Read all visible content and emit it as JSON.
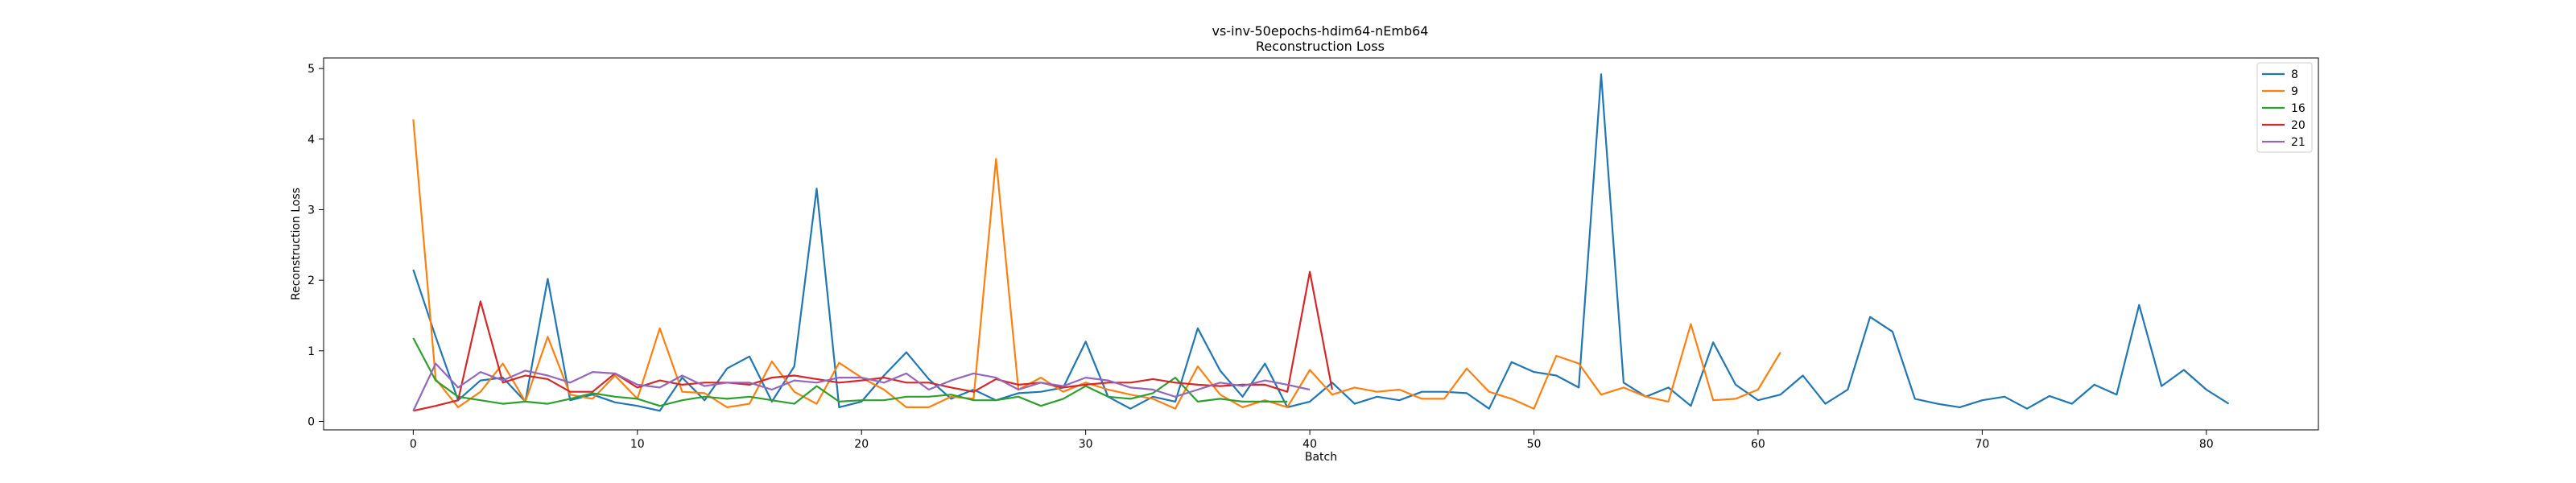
{
  "chart_data": {
    "type": "line",
    "title": "vs-inv-50epochs-hdim64-nEmb64",
    "subtitle": "Reconstruction Loss",
    "xlabel": "Batch",
    "ylabel": "Reconstruction Loss",
    "xlim": [
      -4,
      85
    ],
    "ylim": [
      -0.12,
      5.15
    ],
    "xticks": [
      0,
      10,
      20,
      30,
      40,
      50,
      60,
      70,
      80
    ],
    "yticks": [
      0,
      1,
      2,
      3,
      4,
      5
    ],
    "grid": false,
    "legend_position": "top-right",
    "series": [
      {
        "name": "8",
        "color": "#1f77b4",
        "values": [
          2.15,
          1.2,
          0.3,
          0.58,
          0.62,
          0.28,
          2.02,
          0.3,
          0.38,
          0.27,
          0.22,
          0.15,
          0.62,
          0.3,
          0.75,
          0.92,
          0.28,
          0.78,
          3.3,
          0.2,
          0.28,
          0.65,
          0.98,
          0.6,
          0.32,
          0.45,
          0.3,
          0.4,
          0.42,
          0.48,
          1.13,
          0.35,
          0.18,
          0.35,
          0.28,
          1.32,
          0.72,
          0.35,
          0.82,
          0.2,
          0.28,
          0.55,
          0.25,
          0.35,
          0.3,
          0.42,
          0.42,
          0.4,
          0.18,
          0.84,
          0.7,
          0.65,
          0.48,
          4.92,
          0.55,
          0.35,
          0.48,
          0.22,
          1.12,
          0.52,
          0.3,
          0.38,
          0.65,
          0.25,
          0.45,
          1.48,
          1.27,
          0.32,
          0.25,
          0.2,
          0.3,
          0.35,
          0.18,
          0.36,
          0.25,
          0.52,
          0.38,
          1.65,
          0.5,
          0.73,
          0.45,
          0.25
        ]
      },
      {
        "name": "9",
        "color": "#ff7f0e",
        "values": [
          4.28,
          0.6,
          0.2,
          0.42,
          0.82,
          0.28,
          1.2,
          0.38,
          0.32,
          0.65,
          0.32,
          1.32,
          0.42,
          0.4,
          0.2,
          0.25,
          0.85,
          0.42,
          0.25,
          0.83,
          0.62,
          0.45,
          0.2,
          0.2,
          0.35,
          0.32,
          3.72,
          0.45,
          0.62,
          0.42,
          0.55,
          0.45,
          0.38,
          0.32,
          0.18,
          0.78,
          0.38,
          0.2,
          0.3,
          0.2,
          0.73,
          0.38,
          0.48,
          0.42,
          0.45,
          0.32,
          0.32,
          0.75,
          0.42,
          0.32,
          0.18,
          0.93,
          0.82,
          0.38,
          0.48,
          0.35,
          0.28,
          1.38,
          0.3,
          0.32,
          0.45,
          0.98
        ]
      },
      {
        "name": "16",
        "color": "#2ca02c",
        "values": [
          1.18,
          0.58,
          0.35,
          0.3,
          0.25,
          0.28,
          0.25,
          0.32,
          0.4,
          0.35,
          0.32,
          0.22,
          0.3,
          0.35,
          0.32,
          0.35,
          0.3,
          0.25,
          0.5,
          0.28,
          0.3,
          0.3,
          0.35,
          0.35,
          0.38,
          0.3,
          0.3,
          0.35,
          0.22,
          0.32,
          0.5,
          0.35,
          0.32,
          0.4,
          0.62,
          0.28,
          0.32,
          0.28,
          0.28,
          0.28
        ]
      },
      {
        "name": "20",
        "color": "#d62728",
        "values": [
          0.15,
          0.22,
          0.3,
          1.7,
          0.55,
          0.65,
          0.6,
          0.42,
          0.42,
          0.68,
          0.48,
          0.58,
          0.52,
          0.55,
          0.55,
          0.52,
          0.62,
          0.65,
          0.6,
          0.55,
          0.58,
          0.62,
          0.55,
          0.55,
          0.48,
          0.42,
          0.6,
          0.52,
          0.55,
          0.48,
          0.52,
          0.55,
          0.55,
          0.6,
          0.55,
          0.52,
          0.5,
          0.52,
          0.52,
          0.42,
          2.12,
          0.45
        ]
      },
      {
        "name": "21",
        "color": "#9467bd",
        "values": [
          0.15,
          0.82,
          0.48,
          0.7,
          0.58,
          0.72,
          0.65,
          0.55,
          0.7,
          0.68,
          0.52,
          0.48,
          0.65,
          0.5,
          0.55,
          0.55,
          0.45,
          0.58,
          0.55,
          0.62,
          0.62,
          0.55,
          0.68,
          0.45,
          0.58,
          0.68,
          0.62,
          0.45,
          0.55,
          0.5,
          0.62,
          0.58,
          0.48,
          0.45,
          0.35,
          0.45,
          0.55,
          0.5,
          0.58,
          0.52,
          0.45
        ]
      }
    ]
  }
}
